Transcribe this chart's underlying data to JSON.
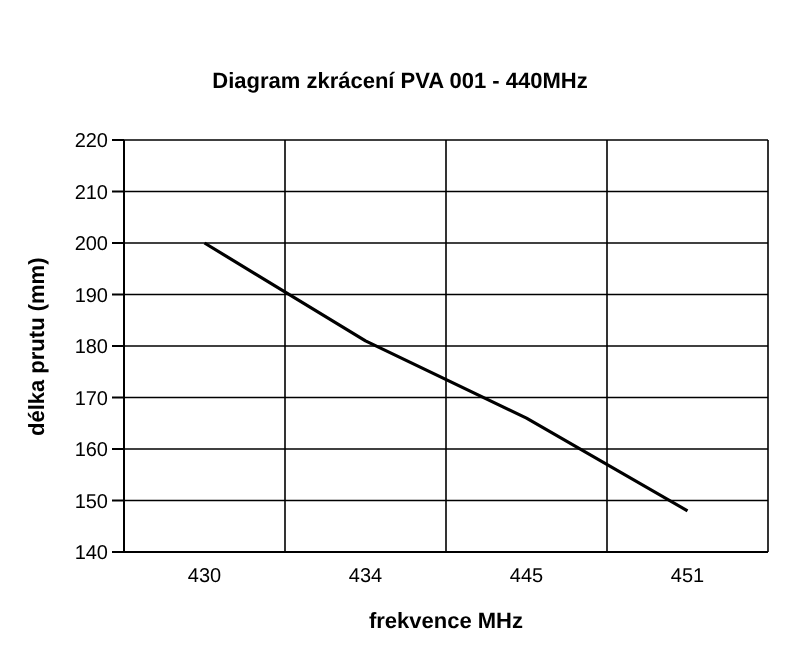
{
  "chart_data": {
    "type": "line",
    "title": "Diagram zkrácení PVA 001 - 440MHz",
    "xlabel": "frekvence MHz",
    "ylabel": "délka prutu (mm)",
    "categories": [
      "430",
      "434",
      "445",
      "451"
    ],
    "series": [
      {
        "color": "#000000",
        "values": [
          200,
          181,
          166,
          148
        ]
      }
    ],
    "ylim": [
      140,
      220
    ],
    "yticks": [
      140,
      150,
      160,
      170,
      180,
      190,
      200,
      210,
      220
    ],
    "grid": true,
    "legend": false,
    "marker": "none",
    "line_style": "solid"
  }
}
